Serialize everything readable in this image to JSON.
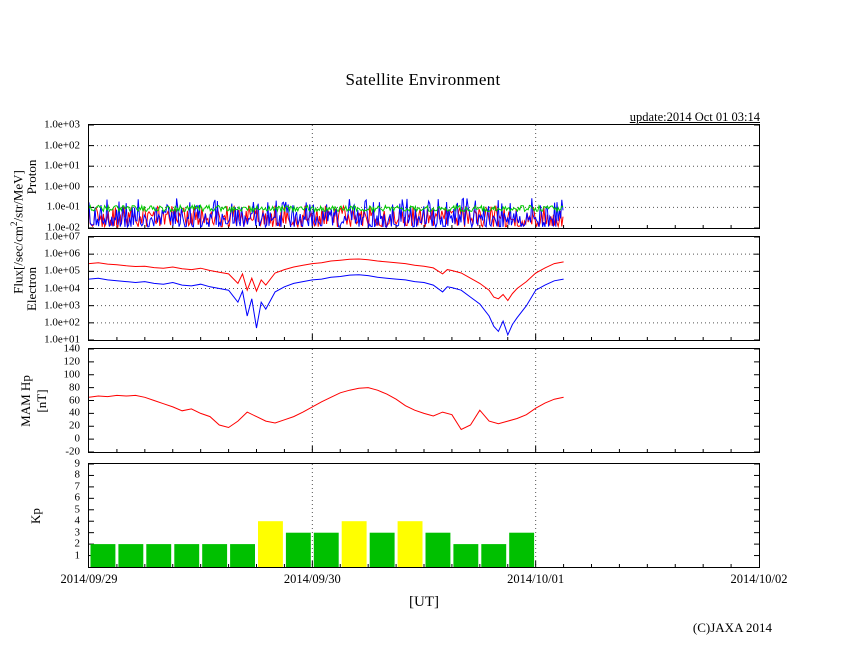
{
  "title": "Satellite Environment",
  "update_label": "update:2014 Oct 01 03:14",
  "footer": {
    "ut_label": "[UT]",
    "copyright": "(C)JAXA 2014"
  },
  "axis_labels": {
    "flux_prefix": "Flux[/sec/cm",
    "flux_sup": "2",
    "flux_suffix": "/str/MeV]",
    "proton": "Proton",
    "electron": "Electron",
    "mam_hp": "MAM Hp",
    "nt": "[nT]",
    "kp": "Kp"
  },
  "x_axis": {
    "labels": [
      "2014/09/29",
      "2014/09/30",
      "2014/10/01",
      "2014/10/02"
    ],
    "label_hours": [
      0,
      24,
      48,
      72
    ],
    "total_hours": 72,
    "day_gridlines_hours": [
      24,
      48
    ]
  },
  "chart_data": [
    {
      "id": "proton",
      "type": "line",
      "title": "Proton flux (noisy band, three channels)",
      "y_scale": "log",
      "y_ticks": [
        "1.0e+03",
        "1.0e+02",
        "1.0e+01",
        "1.0e+00",
        "1.0e-01",
        "1.0e-02"
      ],
      "y_tick_values": [
        3,
        2,
        1,
        0,
        -1,
        -2
      ],
      "y_range_log": [
        -2,
        3
      ],
      "grid_lines": [
        2,
        1,
        0,
        -1
      ],
      "data_end_hour": 51,
      "noise_series": [
        {
          "name": "proton-red",
          "color": "#ff0000",
          "log_min": -1.95,
          "log_max": -0.9,
          "pow": 1.2,
          "seed": 11
        },
        {
          "name": "proton-blue",
          "color": "#0000ff",
          "log_min": -1.95,
          "log_max": -0.55,
          "pow": 1.7,
          "seed": 23
        },
        {
          "name": "proton-green",
          "color": "#00cc00",
          "log_min": -1.2,
          "log_max": -0.9,
          "pow": 1.0,
          "seed": 37
        }
      ]
    },
    {
      "id": "electron",
      "type": "line",
      "title": "Electron flux",
      "y_scale": "log",
      "y_ticks": [
        "1.0e+07",
        "1.0e+06",
        "1.0e+05",
        "1.0e+04",
        "1.0e+03",
        "1.0e+02",
        "1.0e+01"
      ],
      "y_tick_values": [
        7,
        6,
        5,
        4,
        3,
        2,
        1
      ],
      "y_range_log": [
        1,
        7
      ],
      "grid_lines": [
        6,
        5,
        4,
        3,
        2
      ],
      "series": [
        {
          "name": "electron-red",
          "color": "#ff0000",
          "points": [
            [
              0,
              5.45
            ],
            [
              1,
              5.5
            ],
            [
              2,
              5.42
            ],
            [
              3,
              5.38
            ],
            [
              4,
              5.32
            ],
            [
              5,
              5.28
            ],
            [
              6,
              5.3
            ],
            [
              7,
              5.22
            ],
            [
              8,
              5.18
            ],
            [
              9,
              5.25
            ],
            [
              10,
              5.15
            ],
            [
              11,
              5.1
            ],
            [
              12,
              5.18
            ],
            [
              13,
              5.05
            ],
            [
              14,
              4.95
            ],
            [
              15,
              4.85
            ],
            [
              16,
              4.3
            ],
            [
              16.5,
              4.85
            ],
            [
              17,
              3.9
            ],
            [
              17.5,
              4.6
            ],
            [
              18,
              3.85
            ],
            [
              18.5,
              4.5
            ],
            [
              19,
              4.2
            ],
            [
              20,
              4.9
            ],
            [
              21,
              5.1
            ],
            [
              22,
              5.25
            ],
            [
              23,
              5.35
            ],
            [
              24,
              5.45
            ],
            [
              25,
              5.5
            ],
            [
              26,
              5.6
            ],
            [
              27,
              5.65
            ],
            [
              28,
              5.7
            ],
            [
              29,
              5.72
            ],
            [
              30,
              5.68
            ],
            [
              31,
              5.6
            ],
            [
              32,
              5.55
            ],
            [
              33,
              5.5
            ],
            [
              34,
              5.45
            ],
            [
              35,
              5.35
            ],
            [
              36,
              5.3
            ],
            [
              37,
              5.2
            ],
            [
              38,
              4.85
            ],
            [
              38.5,
              5.1
            ],
            [
              39,
              5.05
            ],
            [
              40,
              4.9
            ],
            [
              41,
              4.6
            ],
            [
              42,
              4.3
            ],
            [
              43,
              3.9
            ],
            [
              43.5,
              3.5
            ],
            [
              44,
              3.4
            ],
            [
              44.5,
              3.65
            ],
            [
              45,
              3.3
            ],
            [
              45.5,
              3.7
            ],
            [
              46,
              4.0
            ],
            [
              47,
              4.4
            ],
            [
              48,
              4.9
            ],
            [
              49,
              5.2
            ],
            [
              50,
              5.45
            ],
            [
              51,
              5.55
            ]
          ]
        },
        {
          "name": "electron-blue",
          "color": "#0000ff",
          "points": [
            [
              0,
              4.55
            ],
            [
              1,
              4.6
            ],
            [
              2,
              4.5
            ],
            [
              3,
              4.45
            ],
            [
              4,
              4.4
            ],
            [
              5,
              4.35
            ],
            [
              6,
              4.4
            ],
            [
              7,
              4.3
            ],
            [
              8,
              4.25
            ],
            [
              9,
              4.35
            ],
            [
              10,
              4.2
            ],
            [
              11,
              4.15
            ],
            [
              12,
              4.25
            ],
            [
              13,
              4.1
            ],
            [
              14,
              4.0
            ],
            [
              15,
              3.9
            ],
            [
              16,
              3.2
            ],
            [
              16.5,
              3.85
            ],
            [
              17,
              2.4
            ],
            [
              17.5,
              3.4
            ],
            [
              18,
              1.7
            ],
            [
              18.5,
              3.2
            ],
            [
              19,
              2.8
            ],
            [
              20,
              3.8
            ],
            [
              21,
              4.1
            ],
            [
              22,
              4.3
            ],
            [
              23,
              4.4
            ],
            [
              24,
              4.5
            ],
            [
              25,
              4.55
            ],
            [
              26,
              4.65
            ],
            [
              27,
              4.7
            ],
            [
              28,
              4.78
            ],
            [
              29,
              4.8
            ],
            [
              30,
              4.75
            ],
            [
              31,
              4.65
            ],
            [
              32,
              4.6
            ],
            [
              33,
              4.55
            ],
            [
              34,
              4.5
            ],
            [
              35,
              4.4
            ],
            [
              36,
              4.35
            ],
            [
              37,
              4.2
            ],
            [
              38,
              3.8
            ],
            [
              38.5,
              4.1
            ],
            [
              39,
              4.05
            ],
            [
              40,
              3.9
            ],
            [
              41,
              3.5
            ],
            [
              42,
              3.1
            ],
            [
              43,
              2.4
            ],
            [
              43.5,
              1.8
            ],
            [
              44,
              1.5
            ],
            [
              44.5,
              2.1
            ],
            [
              45,
              1.3
            ],
            [
              45.5,
              1.9
            ],
            [
              46,
              2.3
            ],
            [
              47,
              3.0
            ],
            [
              48,
              3.9
            ],
            [
              49,
              4.2
            ],
            [
              50,
              4.45
            ],
            [
              51,
              4.55
            ]
          ]
        }
      ]
    },
    {
      "id": "hp",
      "type": "line",
      "title": "MAM Hp [nT]",
      "y_ticks": [
        "140",
        "120",
        "100",
        "80",
        "60",
        "40",
        "20",
        "0",
        "-20"
      ],
      "y_tick_values": [
        140,
        120,
        100,
        80,
        60,
        40,
        20,
        0,
        -20
      ],
      "y_range": [
        -20,
        140
      ],
      "grid_lines": [],
      "series": [
        {
          "name": "hp-red",
          "color": "#ff0000",
          "hours_step": 1,
          "values": [
            65,
            67,
            66,
            68,
            67,
            68,
            65,
            60,
            55,
            50,
            44,
            47,
            40,
            35,
            22,
            18,
            28,
            42,
            35,
            28,
            25,
            30,
            35,
            42,
            50,
            58,
            65,
            72,
            76,
            79,
            80,
            76,
            70,
            62,
            52,
            45,
            40,
            36,
            42,
            38,
            15,
            22,
            45,
            28,
            24,
            28,
            32,
            38,
            48,
            56,
            62,
            65
          ]
        }
      ]
    },
    {
      "id": "kp",
      "type": "bar",
      "title": "Kp index (3-hour bars)",
      "y_ticks": [
        "9",
        "8",
        "7",
        "6",
        "5",
        "4",
        "3",
        "2",
        "1"
      ],
      "y_tick_values": [
        9,
        8,
        7,
        6,
        5,
        4,
        3,
        2,
        1
      ],
      "y_range": [
        0,
        9
      ],
      "bar_hours": 3,
      "high_threshold": 4,
      "colors": {
        "low": "#00c000",
        "high": "#ffff00"
      },
      "values": [
        2,
        2,
        2,
        2,
        2,
        2,
        4,
        3,
        3,
        4,
        3,
        4,
        3,
        2,
        2,
        3
      ]
    }
  ]
}
